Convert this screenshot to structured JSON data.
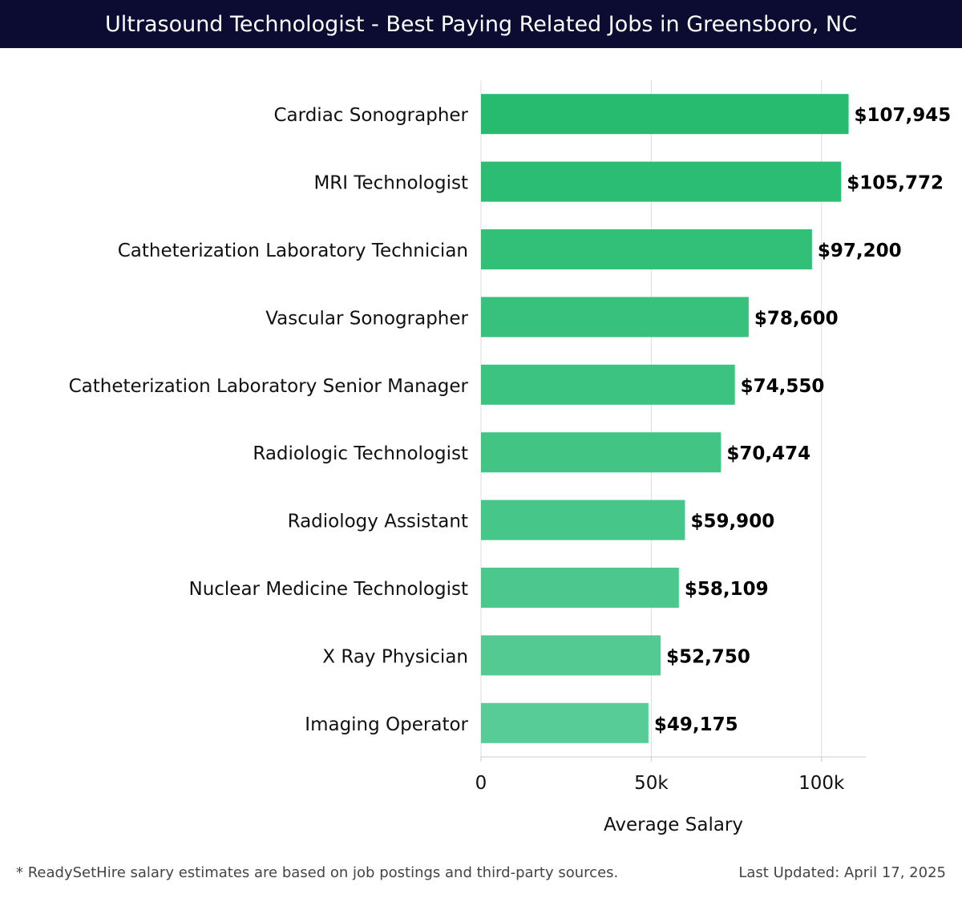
{
  "header": {
    "title": "Ultrasound Technologist - Best Paying Related Jobs in Greensboro, NC"
  },
  "chart_data": {
    "type": "bar",
    "orientation": "horizontal",
    "title": "Ultrasound Technologist - Best Paying Related Jobs in Greensboro, NC",
    "xlabel": "Average Salary",
    "ylabel": "",
    "categories": [
      "Cardiac Sonographer",
      "MRI Technologist",
      "Catheterization Laboratory Technician",
      "Vascular Sonographer",
      "Catheterization Laboratory Senior Manager",
      "Radiologic Technologist",
      "Radiology Assistant",
      "Nuclear Medicine Technologist",
      "X Ray Physician",
      "Imaging Operator"
    ],
    "values": [
      107945,
      105772,
      97200,
      78600,
      74550,
      70474,
      59900,
      58109,
      52750,
      49175
    ],
    "value_labels": [
      "$107,945",
      "$105,772",
      "$97,200",
      "$78,600",
      "$74,550",
      "$70,474",
      "$59,900",
      "$58,109",
      "$52,750",
      "$49,175"
    ],
    "x_ticks": [
      0,
      50000,
      100000
    ],
    "x_tick_labels": [
      "0",
      "50k",
      "100k"
    ],
    "xlim": [
      0,
      113000
    ],
    "grid": true,
    "colors": {
      "bar_start": "#27bb70",
      "bar_end": "#57cc96",
      "grid": "#dddddd",
      "axis": "#cccccc"
    }
  },
  "footer": {
    "note": "* ReadySetHire salary estimates are based on job postings and third-party sources.",
    "updated": "Last Updated: April 17, 2025"
  }
}
